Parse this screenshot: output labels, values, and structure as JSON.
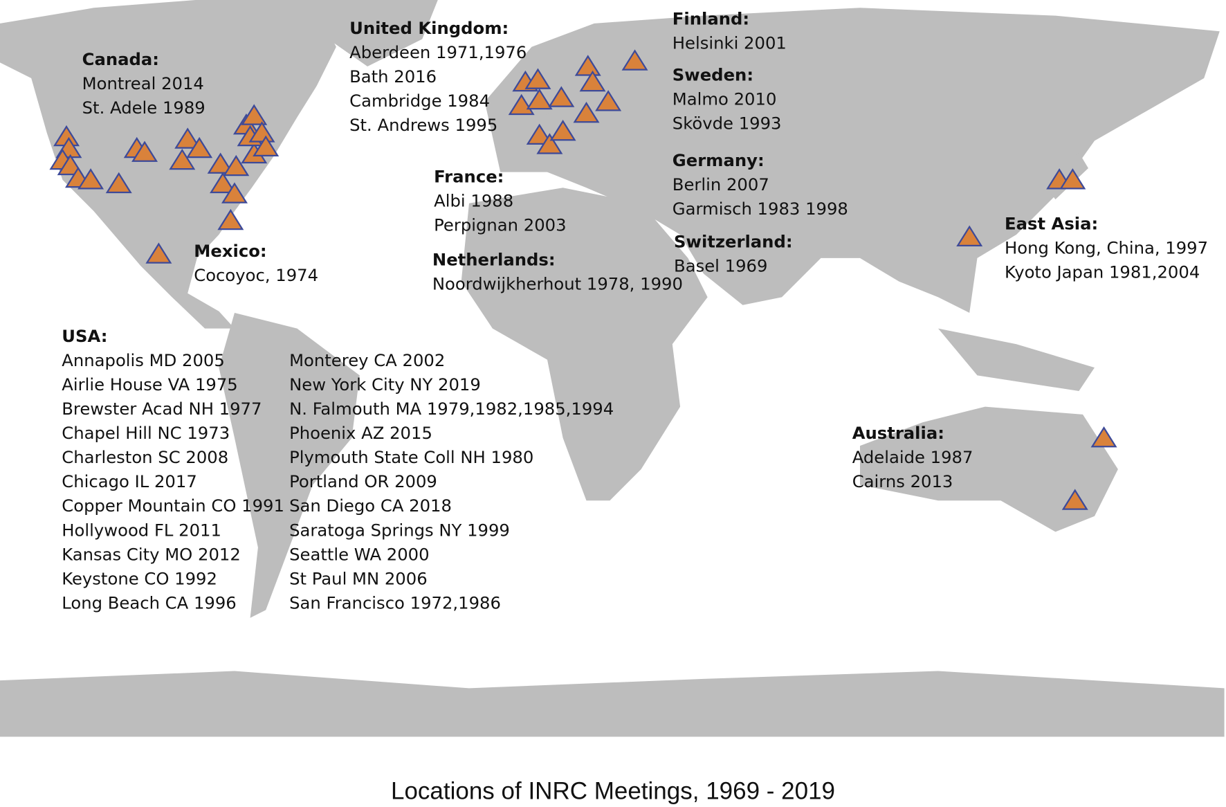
{
  "regions": [
    {
      "title": "Canada:",
      "entries": [
        "Montreal 2014",
        "St. Adele 1989"
      ]
    },
    {
      "title": "United Kingdom:",
      "entries": [
        "Aberdeen 1971,1976",
        "Bath 2016",
        "Cambridge 1984",
        "St. Andrews 1995"
      ]
    },
    {
      "title": "Finland:",
      "entries": [
        "Helsinki 2001"
      ]
    },
    {
      "title": "Sweden:",
      "entries": [
        "Malmo 2010",
        "Skövde 1993"
      ]
    },
    {
      "title": "Germany:",
      "entries": [
        "Berlin 2007",
        "Garmisch 1983 1998"
      ]
    },
    {
      "title": "Switzerland:",
      "entries": [
        "Basel 1969"
      ]
    },
    {
      "title": "France:",
      "entries": [
        "Albi 1988",
        "Perpignan 2003"
      ]
    },
    {
      "title": "Netherlands:",
      "entries": [
        "Noordwijkherhout 1978, 1990"
      ]
    },
    {
      "title": "Mexico:",
      "entries": [
        "Cocoyoc, 1974"
      ]
    },
    {
      "title": "East Asia:",
      "entries": [
        "Hong Kong, China, 1997",
        "Kyoto Japan 1981,2004"
      ]
    },
    {
      "title": "Australia:",
      "entries": [
        "Adelaide  1987",
        "Cairns 2013"
      ]
    },
    {
      "title": "USA:",
      "entries": [
        "Annapolis MD 2005",
        "Airlie House VA 1975",
        "Brewster Acad NH 1977",
        "Chapel Hill NC 1973",
        "Charleston SC 2008",
        "Chicago IL 2017",
        "Copper Mountain CO 1991",
        "Hollywood FL 2011",
        "Kansas City MO 2012",
        "Keystone CO 1992",
        "Long Beach CA 1996",
        "Monterey CA 2002",
        "New York City NY 2019",
        "N. Falmouth MA 1979,1982,1985,1994",
        "Phoenix AZ 2015",
        "Plymouth State Coll NH 1980",
        "Portland OR 2009",
        "San Diego CA 2018",
        "Saratoga Springs NY 1999",
        "Seattle WA 2000",
        "St Paul MN 2006",
        "San Francisco 1972,1986"
      ]
    }
  ],
  "caption": "Locations of INRC Meetings, 1969 - 2019"
}
